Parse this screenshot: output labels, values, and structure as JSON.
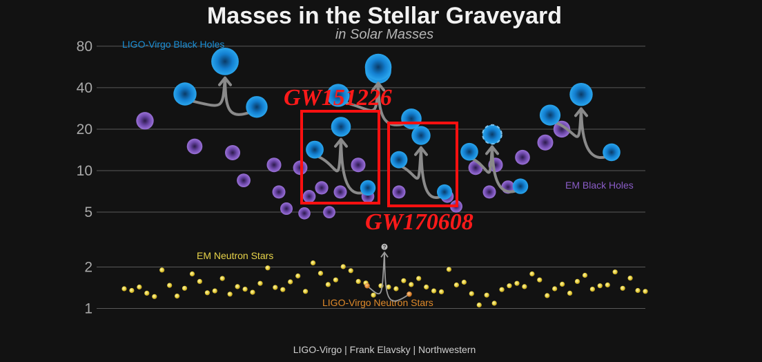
{
  "chart_data": {
    "type": "scatter",
    "title": "Masses in the Stellar Graveyard",
    "subtitle": "in Solar Masses",
    "yscale": "log",
    "ylim": [
      0.85,
      85
    ],
    "yticks": [
      1,
      2,
      5,
      10,
      20,
      40,
      80
    ],
    "grid": true,
    "credit": "LIGO-Virgo | Frank Elavsky | Northwestern",
    "labels": {
      "ligo_bh": "LIGO-Virgo Black Holes",
      "em_bh": "EM Black Holes",
      "em_ns": "EM Neutron Stars",
      "ligo_ns": "LIGO-Virgo Neutron Stars",
      "unknown_marker": "?"
    },
    "highlights": [
      {
        "label": "GW151226",
        "color": "#ff1a1a"
      },
      {
        "label": "GW170608",
        "color": "#ff1a1a"
      }
    ],
    "colors": {
      "ligo_bh": "#1a8fd6",
      "em_bh": "#8a5cc7",
      "em_ns": "#e8d44a",
      "ligo_ns": "#e08a2a",
      "highlight": "#ff1a1a",
      "arrow": "#8a8a8a"
    },
    "mergers": [
      {
        "m1": 36,
        "m2": 29,
        "final": 62
      },
      {
        "m1": 14.2,
        "m2": 7.5,
        "final": 20.8
      },
      {
        "m1": 31.2,
        "m2": 19.4,
        "final": 48.7
      },
      {
        "m1": 12,
        "m2": 7,
        "final": 18
      },
      {
        "m1": 30.5,
        "m2": 25.3,
        "final": 53.2
      },
      {
        "m1": 35.2,
        "m2": 23.8,
        "final": 56.4
      },
      {
        "m1": 1.46,
        "m2": 1.27,
        "final": 2.8
      },
      {
        "m1": 13.7,
        "m2": 7.7,
        "final": 18.3
      },
      {
        "m1": 25.3,
        "m2": 13.6,
        "final": 35.7
      },
      {
        "m1": 35.6,
        "m2": 30.6,
        "final": 63.1
      },
      {
        "m1": 23.2,
        "m2": 13.6,
        "final": 35.6
      }
    ],
    "em_black_holes": [
      23,
      15,
      13.5,
      8.5,
      5.3,
      4.9,
      7,
      11,
      10.5,
      6.5,
      5,
      7.5,
      7,
      11,
      6.5,
      7,
      5.5,
      6.5,
      10.5,
      7,
      11,
      7.6,
      12.5,
      16,
      20
    ],
    "em_neutron_stars": [
      1.39,
      1.35,
      1.43,
      1.29,
      1.22,
      1.9,
      1.47,
      1.23,
      1.4,
      1.78,
      1.57,
      1.3,
      1.34,
      1.65,
      1.27,
      1.44,
      1.38,
      1.31,
      1.52,
      1.97,
      1.42,
      1.37,
      1.56,
      1.72,
      1.33,
      2.14,
      1.8,
      1.49,
      1.61,
      2.01,
      1.88,
      1.57,
      1.53,
      1.25,
      1.46,
      1.43,
      1.39,
      1.59,
      1.49,
      1.65,
      1.43,
      1.34,
      1.32,
      1.92,
      1.48,
      1.55,
      1.28,
      1.06,
      1.25,
      1.09,
      1.37,
      1.46,
      1.52,
      1.44,
      1.78,
      1.61,
      1.24,
      1.39,
      1.5,
      1.29,
      1.57,
      1.74,
      1.38,
      1.46,
      1.48,
      1.84,
      1.4,
      1.66,
      1.35,
      1.33
    ]
  }
}
